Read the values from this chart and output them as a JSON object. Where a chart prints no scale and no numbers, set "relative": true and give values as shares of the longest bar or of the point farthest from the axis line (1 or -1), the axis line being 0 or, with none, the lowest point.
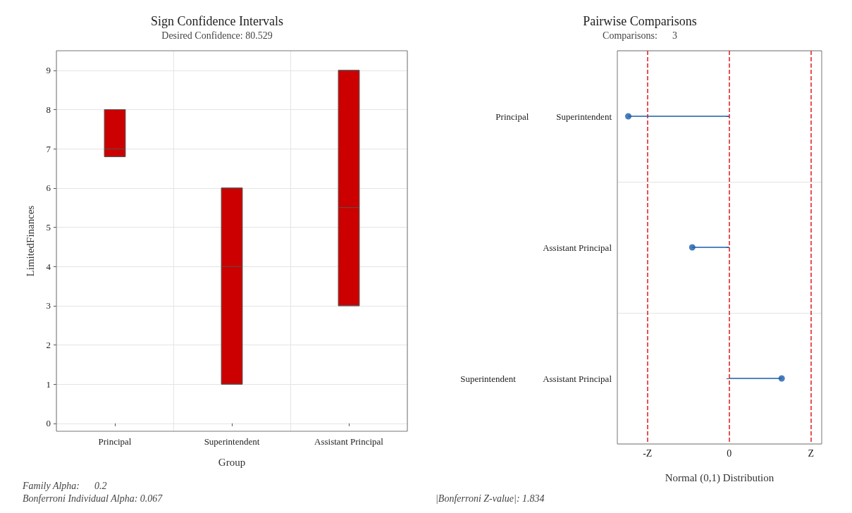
{
  "chart_data": [
    {
      "type": "box",
      "title": "Sign Confidence Intervals",
      "subtitle": "Desired Confidence: 80.529",
      "xlabel": "Group",
      "ylabel": "LimitedFinances",
      "categories": [
        "Principal",
        "Superintendent",
        "Assistant Principal"
      ],
      "color": "#cc0000",
      "boxes": [
        {
          "low": 6.8,
          "q1": 6.8,
          "median": 7,
          "q3": 8,
          "high": 8
        },
        {
          "low": 1,
          "q1": 1,
          "median": 4,
          "q3": 6,
          "high": 6
        },
        {
          "low": 3,
          "q1": 3,
          "median": 5.5,
          "q3": 9,
          "high": 9
        }
      ],
      "ylim": [
        -0.2,
        9.5
      ],
      "yticks": [
        0,
        1,
        2,
        3,
        4,
        5,
        6,
        7,
        8,
        9
      ],
      "grid": true,
      "annotations": [
        "Family Alpha:      0.2",
        "Bonferroni Individual Alpha: 0.067"
      ]
    },
    {
      "type": "lollipop",
      "title": "Pairwise Comparisons",
      "subtitle": "Comparisons:      3",
      "xlabel": "Normal (0,1) Distribution",
      "orientation": "horizontal",
      "relative": true,
      "categories": [
        "Principal            Superintendent",
        "Assistant Principal",
        "Superintendent            Assistant Principal"
      ],
      "values": [
        -1,
        -0.366,
        0.52
      ],
      "color": "#1a5ca8",
      "marker": "circle",
      "grid": "y",
      "ref_lines": [
        {
          "axis": "x",
          "value": -0.808,
          "label": "-Z",
          "color": "#e0191b",
          "line_style": "dashed"
        },
        {
          "axis": "x",
          "value": 0,
          "label": "0",
          "color": "#e0191b",
          "line_style": "dashed"
        },
        {
          "axis": "x",
          "value": 0.808,
          "label": "Z",
          "color": "#e0191b",
          "line_style": "dashed"
        }
      ],
      "annotations": [
        "|Bonferroni Z-value|: 1.834"
      ]
    }
  ]
}
